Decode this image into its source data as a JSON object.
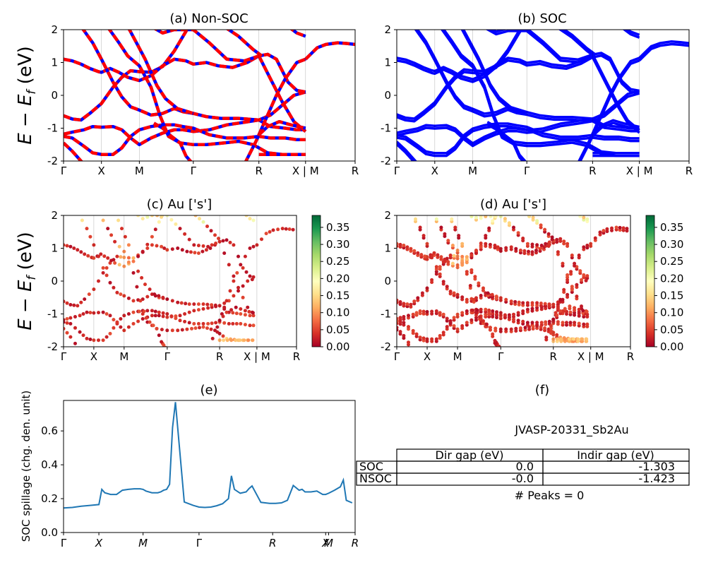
{
  "chart_data": [
    {
      "id": "a",
      "type": "line",
      "title": "(a) Non-SOC",
      "ylabel": "E − E_f (eV)",
      "ylim": [
        -2,
        2
      ],
      "yticks": [
        -2,
        -1,
        0,
        1,
        2
      ],
      "xlim": [
        0,
        10.0
      ],
      "kpoints": [
        {
          "label": "Γ",
          "x": 0
        },
        {
          "label": "X",
          "x": 1.3
        },
        {
          "label": "M",
          "x": 2.6
        },
        {
          "label": "Γ",
          "x": 4.45
        },
        {
          "label": "R",
          "x": 6.7
        },
        {
          "label": "X | M",
          "x": 8.3
        },
        {
          "label": "R",
          "x": 10.0
        }
      ],
      "series_style": "red-blue-dashed",
      "bands": [
        [
          [
            0,
            -0.62
          ],
          [
            0.3,
            -0.72
          ],
          [
            0.6,
            -0.75
          ],
          [
            0.9,
            -0.55
          ],
          [
            1.3,
            -0.25
          ],
          [
            1.7,
            0.25
          ],
          [
            2.0,
            0.55
          ],
          [
            2.3,
            0.75
          ],
          [
            2.6,
            0.72
          ],
          [
            3.0,
            0.7
          ],
          [
            3.4,
            0.88
          ],
          [
            3.8,
            1.35
          ],
          [
            4.1,
            1.8
          ],
          [
            4.3,
            2.1
          ]
        ],
        [
          [
            0,
            -1.18
          ],
          [
            0.3,
            -1.12
          ],
          [
            0.7,
            -1.05
          ],
          [
            1.0,
            -0.95
          ],
          [
            1.3,
            -0.97
          ],
          [
            1.7,
            -0.95
          ],
          [
            2.0,
            -1.05
          ],
          [
            2.3,
            -1.3
          ],
          [
            2.6,
            -1.5
          ],
          [
            3.0,
            -1.3
          ],
          [
            3.4,
            -1.15
          ],
          [
            3.8,
            -1.05
          ],
          [
            4.1,
            -1.05
          ],
          [
            4.45,
            -1.1
          ],
          [
            5.0,
            -1.05
          ],
          [
            5.6,
            -0.9
          ],
          [
            6.2,
            -0.82
          ],
          [
            6.7,
            -0.75
          ],
          [
            7.1,
            -0.95
          ],
          [
            7.6,
            -1.0
          ],
          [
            8.0,
            -1.05
          ],
          [
            8.3,
            -1.05
          ]
        ],
        [
          [
            0,
            1.1
          ],
          [
            0.3,
            1.05
          ],
          [
            0.6,
            0.95
          ],
          [
            0.9,
            0.82
          ],
          [
            1.2,
            0.72
          ],
          [
            1.3,
            0.7
          ],
          [
            1.6,
            0.82
          ],
          [
            1.9,
            0.7
          ],
          [
            2.2,
            0.55
          ],
          [
            2.6,
            0.45
          ],
          [
            3.0,
            0.6
          ],
          [
            3.4,
            0.9
          ],
          [
            3.8,
            1.1
          ],
          [
            4.2,
            1.05
          ],
          [
            4.45,
            0.95
          ],
          [
            4.9,
            1.0
          ],
          [
            5.3,
            0.9
          ],
          [
            5.8,
            0.85
          ],
          [
            6.3,
            1.0
          ],
          [
            6.7,
            1.2
          ],
          [
            7.1,
            0.5
          ],
          [
            7.5,
            -0.2
          ],
          [
            7.9,
            -0.8
          ],
          [
            8.3,
            -1.1
          ]
        ],
        [
          [
            0,
            -1.25
          ],
          [
            0.3,
            -1.3
          ],
          [
            0.7,
            -1.55
          ],
          [
            1.0,
            -1.75
          ],
          [
            1.3,
            -1.8
          ],
          [
            1.7,
            -1.8
          ],
          [
            2.0,
            -1.6
          ],
          [
            2.3,
            -1.25
          ],
          [
            2.6,
            -1.05
          ],
          [
            3.0,
            -0.95
          ],
          [
            3.4,
            -0.9
          ],
          [
            3.8,
            -0.9
          ],
          [
            4.1,
            -0.95
          ],
          [
            4.45,
            -1.0
          ],
          [
            5.0,
            -1.2
          ],
          [
            5.6,
            -1.3
          ],
          [
            6.2,
            -1.3
          ],
          [
            6.7,
            -1.25
          ],
          [
            7.1,
            -1.3
          ],
          [
            7.6,
            -1.3
          ],
          [
            8.0,
            -1.35
          ],
          [
            8.3,
            -1.35
          ]
        ],
        [
          [
            0,
            -1.45
          ],
          [
            0.3,
            -1.7
          ],
          [
            0.7,
            -2.1
          ]
        ],
        [
          [
            0.6,
            2.1
          ],
          [
            1.0,
            1.6
          ],
          [
            1.3,
            1.1
          ],
          [
            1.7,
            0.4
          ],
          [
            2.0,
            -0.05
          ],
          [
            2.3,
            -0.35
          ],
          [
            2.6,
            -0.45
          ],
          [
            3.0,
            -0.6
          ],
          [
            3.4,
            -0.55
          ],
          [
            3.8,
            -0.4
          ],
          [
            4.1,
            -0.5
          ],
          [
            4.45,
            -0.55
          ],
          [
            4.9,
            -0.65
          ],
          [
            5.4,
            -0.7
          ],
          [
            6.0,
            -0.7
          ],
          [
            6.7,
            -0.75
          ],
          [
            7.1,
            -0.6
          ],
          [
            7.5,
            -0.3
          ],
          [
            7.9,
            0.0
          ],
          [
            8.3,
            0.1
          ]
        ],
        [
          [
            1.5,
            2.1
          ],
          [
            1.9,
            1.6
          ],
          [
            2.2,
            1.2
          ],
          [
            2.6,
            0.9
          ],
          [
            3.0,
            0.25
          ],
          [
            3.3,
            -0.6
          ],
          [
            3.6,
            -1.25
          ],
          [
            4.0,
            -1.45
          ],
          [
            4.45,
            -1.5
          ],
          [
            4.9,
            -1.5
          ],
          [
            5.5,
            -1.45
          ],
          [
            6.0,
            -1.4
          ],
          [
            6.5,
            -1.5
          ],
          [
            6.7,
            -1.6
          ],
          [
            7.0,
            -1.75
          ],
          [
            7.5,
            -1.8
          ],
          [
            8.3,
            -1.8
          ]
        ],
        [
          [
            2.2,
            2.1
          ],
          [
            2.5,
            1.6
          ],
          [
            2.8,
            1.1
          ],
          [
            3.2,
            0.3
          ],
          [
            3.5,
            -0.1
          ],
          [
            3.9,
            -0.4
          ],
          [
            4.45,
            -0.55
          ]
        ],
        [
          [
            3.0,
            2.1
          ],
          [
            3.4,
            1.9
          ],
          [
            3.8,
            2.0
          ],
          [
            4.45,
            2.0
          ],
          [
            5.0,
            1.6
          ],
          [
            5.6,
            1.1
          ],
          [
            6.2,
            1.05
          ],
          [
            6.7,
            1.2
          ],
          [
            7.0,
            1.25
          ],
          [
            7.3,
            1.1
          ],
          [
            7.7,
            0.4
          ],
          [
            8.0,
            0.15
          ],
          [
            8.3,
            0.1
          ]
        ],
        [
          [
            4.45,
            -2.1
          ],
          [
            4.3,
            -1.95
          ],
          [
            4.2,
            -1.85
          ],
          [
            4.0,
            -1.45
          ],
          [
            3.7,
            -1.25
          ],
          [
            3.4,
            -1.0
          ],
          [
            3.1,
            -0.85
          ]
        ],
        [
          [
            5.5,
            2.1
          ],
          [
            6.0,
            1.8
          ],
          [
            6.5,
            1.4
          ],
          [
            6.8,
            1.2
          ]
        ],
        [
          [
            6.2,
            -2.1
          ],
          [
            6.6,
            -1.4
          ],
          [
            6.8,
            -1.0
          ],
          [
            7.0,
            -0.6
          ],
          [
            7.3,
            0.0
          ],
          [
            7.6,
            0.5
          ],
          [
            8.0,
            1.0
          ],
          [
            8.3,
            1.1
          ]
        ],
        [
          [
            7.7,
            2.1
          ],
          [
            8.0,
            1.9
          ],
          [
            8.3,
            1.8
          ]
        ],
        [
          [
            8.3,
            1.1
          ],
          [
            8.7,
            1.45
          ],
          [
            9.0,
            1.55
          ],
          [
            9.4,
            1.6
          ],
          [
            9.7,
            1.58
          ],
          [
            10.0,
            1.55
          ]
        ],
        [
          [
            6.7,
            -1.8
          ],
          [
            7.2,
            -1.8
          ],
          [
            8.3,
            -1.8
          ]
        ],
        [
          [
            6.7,
            -1.2
          ],
          [
            7.0,
            -0.95
          ],
          [
            7.4,
            -0.8
          ],
          [
            7.8,
            -0.9
          ],
          [
            8.3,
            -1.0
          ]
        ]
      ]
    },
    {
      "id": "b",
      "type": "line",
      "title": "(b) SOC",
      "ylim": [
        -2,
        2
      ],
      "yticks": [
        -2,
        -1,
        0,
        1,
        2
      ],
      "xlim": [
        0,
        10.0
      ],
      "kpoints": [
        {
          "label": "Γ",
          "x": 0
        },
        {
          "label": "X",
          "x": 1.3
        },
        {
          "label": "M",
          "x": 2.6
        },
        {
          "label": "Γ",
          "x": 4.45
        },
        {
          "label": "R",
          "x": 6.7
        },
        {
          "label": "X | M",
          "x": 8.3
        },
        {
          "label": "R",
          "x": 10.0
        }
      ],
      "series_style": "blue-split",
      "bands_ref": "a"
    },
    {
      "id": "c",
      "type": "scatter",
      "title": "(c)  Au ['s']",
      "ylabel": "E − E_f (eV)",
      "ylim": [
        -2,
        2
      ],
      "yticks": [
        -2,
        -1,
        0,
        1,
        2
      ],
      "xlim": [
        0,
        10.0
      ],
      "kpoints": [
        {
          "label": "Γ",
          "x": 0
        },
        {
          "label": "X",
          "x": 1.3
        },
        {
          "label": "M",
          "x": 2.6
        },
        {
          "label": "Γ",
          "x": 4.45
        },
        {
          "label": "R",
          "x": 6.7
        },
        {
          "label": "X | M",
          "x": 8.3
        },
        {
          "label": "R",
          "x": 10.0
        }
      ],
      "bands_ref": "a",
      "colorbar": {
        "min": 0.0,
        "max": 0.385,
        "ticks": [
          "0.00",
          "0.05",
          "0.10",
          "0.15",
          "0.20",
          "0.25",
          "0.30",
          "0.35"
        ],
        "colormap": "RdYlGn"
      }
    },
    {
      "id": "d",
      "type": "scatter",
      "title": "(d) Au ['s']",
      "ylim": [
        -2,
        2
      ],
      "yticks": [
        -2,
        -1,
        0,
        1,
        2
      ],
      "xlim": [
        0,
        10.0
      ],
      "kpoints": [
        {
          "label": "Γ",
          "x": 0
        },
        {
          "label": "X",
          "x": 1.3
        },
        {
          "label": "M",
          "x": 2.6
        },
        {
          "label": "Γ",
          "x": 4.45
        },
        {
          "label": "R",
          "x": 6.7
        },
        {
          "label": "X | M",
          "x": 8.3
        },
        {
          "label": "R",
          "x": 10.0
        }
      ],
      "bands_ref": "a",
      "colorbar": {
        "min": 0.0,
        "max": 0.385,
        "ticks": [
          "0.00",
          "0.05",
          "0.10",
          "0.15",
          "0.20",
          "0.25",
          "0.30",
          "0.35"
        ],
        "colormap": "RdYlGn"
      }
    },
    {
      "id": "e",
      "type": "line",
      "title": "(e)",
      "ylabel": "SOC spillage (chg. den. unit)",
      "ylim": [
        0,
        0.78
      ],
      "yticks": [
        "0.0",
        "0.2",
        "0.4",
        "0.6"
      ],
      "xlim": [
        0,
        99
      ],
      "xticks": [
        {
          "label": "Γ",
          "x": 0
        },
        {
          "label": "X",
          "x": 12
        },
        {
          "label": "M",
          "x": 27
        },
        {
          "label": "Γ",
          "x": 46
        },
        {
          "label": "R",
          "x": 71
        },
        {
          "label": "X",
          "x": 89
        },
        {
          "label": "M",
          "x": 90
        },
        {
          "label": "R",
          "x": 99
        }
      ],
      "x": [
        0,
        3,
        6,
        9,
        12,
        13,
        14,
        16,
        18,
        20,
        22,
        24,
        26,
        27,
        28,
        30,
        32,
        33,
        34,
        35,
        36,
        37,
        38,
        41,
        44,
        46,
        48,
        50,
        52,
        54,
        55,
        56,
        57,
        58,
        60,
        62,
        63,
        64,
        67,
        70,
        72,
        74,
        76,
        78,
        80,
        81,
        82,
        84,
        86,
        88,
        89,
        90,
        92,
        94,
        95,
        96,
        98
      ],
      "values": [
        0.145,
        0.148,
        0.155,
        0.16,
        0.165,
        0.255,
        0.235,
        0.225,
        0.225,
        0.25,
        0.255,
        0.258,
        0.258,
        0.255,
        0.245,
        0.235,
        0.235,
        0.24,
        0.25,
        0.255,
        0.285,
        0.62,
        0.77,
        0.18,
        0.16,
        0.15,
        0.148,
        0.15,
        0.158,
        0.17,
        0.185,
        0.2,
        0.335,
        0.255,
        0.232,
        0.24,
        0.26,
        0.275,
        0.178,
        0.172,
        0.172,
        0.175,
        0.19,
        0.278,
        0.25,
        0.255,
        0.24,
        0.24,
        0.245,
        0.225,
        0.225,
        0.232,
        0.25,
        0.27,
        0.31,
        0.19,
        0.175
      ],
      "color": "#1f77b4"
    }
  ],
  "panel_f": {
    "title": "(f)",
    "material": "JVASP-20331_Sb2Au",
    "headers": [
      "Dir gap (eV)",
      "Indir gap (eV)"
    ],
    "rows": [
      {
        "label": "SOC",
        "dir": "0.0",
        "indir": "-1.303"
      },
      {
        "label": "NSOC",
        "dir": "-0.0",
        "indir": "-1.423"
      }
    ],
    "peaks_text": "# Peaks = 0"
  }
}
